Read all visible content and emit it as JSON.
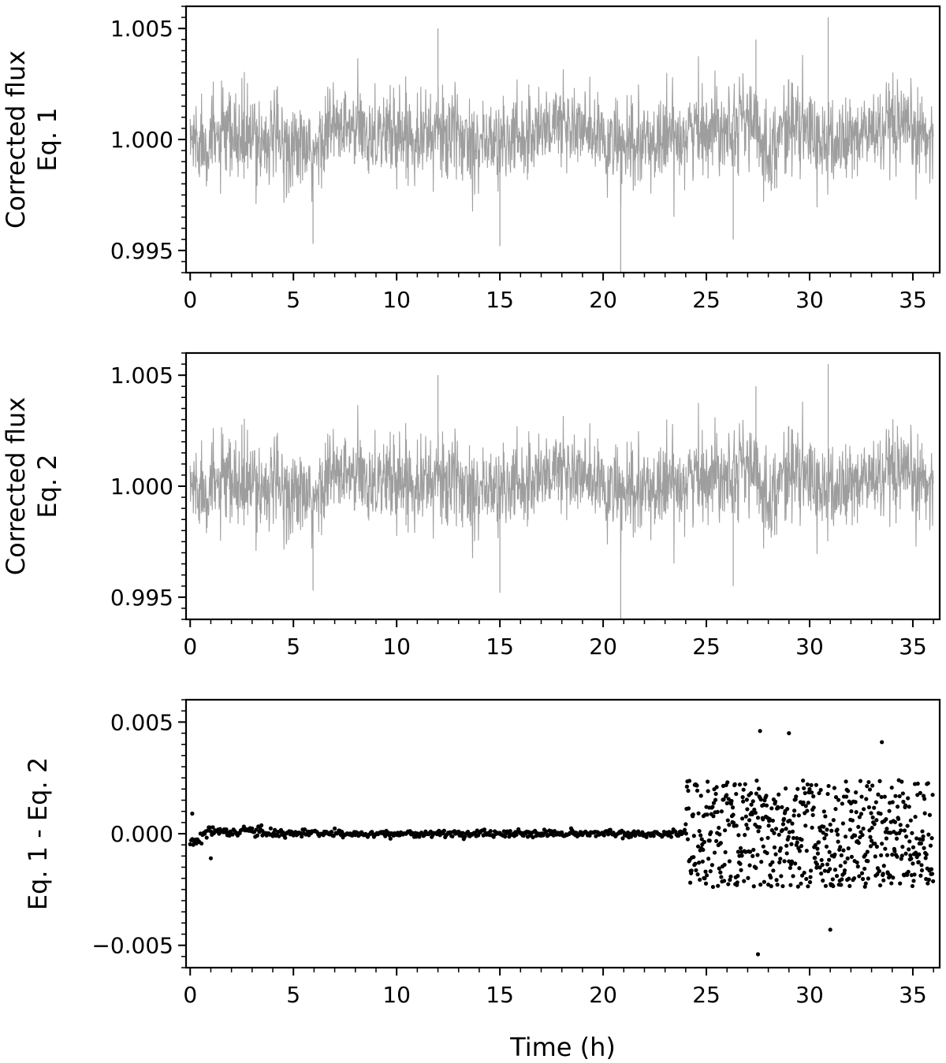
{
  "figure": {
    "xlabel": "Time (h)"
  },
  "chart_data": [
    {
      "type": "line",
      "ylabel_lines": [
        "Corrected flux",
        "Eq. 1"
      ],
      "xlim": [
        -0.2,
        36.3
      ],
      "ylim": [
        0.994,
        1.006
      ],
      "xticks": [
        "0",
        "5",
        "10",
        "15",
        "20",
        "25",
        "30",
        "35"
      ],
      "yticks": [
        "0.995",
        "1.000",
        "1.005"
      ],
      "series": [
        {
          "color": "#9e9e9e",
          "cadence_h": 0.0167,
          "x_range": [
            0,
            36
          ],
          "baseline": 1.0,
          "trend_x": [
            0,
            2,
            4,
            5.5,
            6,
            6.5,
            9,
            12,
            15,
            18,
            21,
            24,
            27,
            28,
            29,
            31,
            33,
            36
          ],
          "trend_y": [
            1.0,
            1.0,
            1.0,
            0.9995,
            0.999,
            1.0005,
            1.0003,
            1.0003,
            0.9998,
            1.0008,
            0.9995,
            1.0003,
            1.001,
            0.9995,
            1.0008,
            0.9997,
            1.0004,
            1.0002
          ],
          "amplitude": 0.0018,
          "min_value": 0.9938,
          "max_value": 1.0055
        }
      ],
      "grid": false,
      "legend": "none"
    },
    {
      "type": "line",
      "ylabel_lines": [
        "Corrected flux",
        "Eq. 2"
      ],
      "xlim": [
        -0.2,
        36.3
      ],
      "ylim": [
        0.994,
        1.006
      ],
      "xticks": [
        "0",
        "5",
        "10",
        "15",
        "20",
        "25",
        "30",
        "35"
      ],
      "yticks": [
        "0.995",
        "1.000",
        "1.005"
      ],
      "series": [
        {
          "color": "#9e9e9e",
          "cadence_h": 0.0167,
          "x_range": [
            0,
            36
          ],
          "baseline": 1.0,
          "trend_x": [
            0,
            2,
            4,
            5.5,
            6,
            6.5,
            9,
            12,
            15,
            18,
            21,
            24,
            27,
            28,
            29,
            31,
            33,
            36
          ],
          "trend_y": [
            1.0,
            1.0,
            1.0,
            0.9995,
            0.999,
            1.0005,
            1.0003,
            1.0003,
            0.9998,
            1.0008,
            0.9995,
            1.0003,
            1.001,
            0.9995,
            1.0008,
            0.9997,
            1.0004,
            1.0002
          ],
          "amplitude": 0.0018,
          "min_value": 0.9938,
          "max_value": 1.0055
        }
      ],
      "grid": false,
      "legend": "none"
    },
    {
      "type": "scatter",
      "ylabel_lines": [
        "Eq. 1 - Eq. 2"
      ],
      "xlim": [
        -0.2,
        36.3
      ],
      "ylim": [
        -0.006,
        0.006
      ],
      "xticks": [
        "0",
        "5",
        "10",
        "15",
        "20",
        "25",
        "30",
        "35"
      ],
      "yticks": [
        "−0.005",
        "0.000",
        "0.005"
      ],
      "series": [
        {
          "color": "#000000",
          "marker": "circle",
          "segments": [
            {
              "x_range": [
                0,
                2.0
              ],
              "step_h": 0.05,
              "center": -0.0003,
              "spread": 0.0005,
              "note_points": [
                [
                  0.1,
                  0.0009
                ],
                [
                  1.0,
                  -0.0011
                ]
              ]
            },
            {
              "x_range": [
                2.0,
                3.5
              ],
              "step_h": 0.05,
              "center": 0.0001,
              "spread": 0.00012
            },
            {
              "x_range": [
                3.5,
                24.0
              ],
              "step_h": 0.05,
              "center": 0.0,
              "spread": 8e-05
            },
            {
              "x_range": [
                24.0,
                36.0
              ],
              "step_h": 0.02,
              "center": 0.0,
              "spread": 0.002,
              "extremes": [
                [
                  27.5,
                  -0.0054
                ],
                [
                  27.6,
                  0.0046
                ],
                [
                  29.0,
                  0.0045
                ],
                [
                  33.5,
                  0.0041
                ],
                [
                  31.0,
                  -0.0043
                ]
              ]
            }
          ]
        }
      ],
      "grid": false,
      "legend": "none"
    }
  ]
}
